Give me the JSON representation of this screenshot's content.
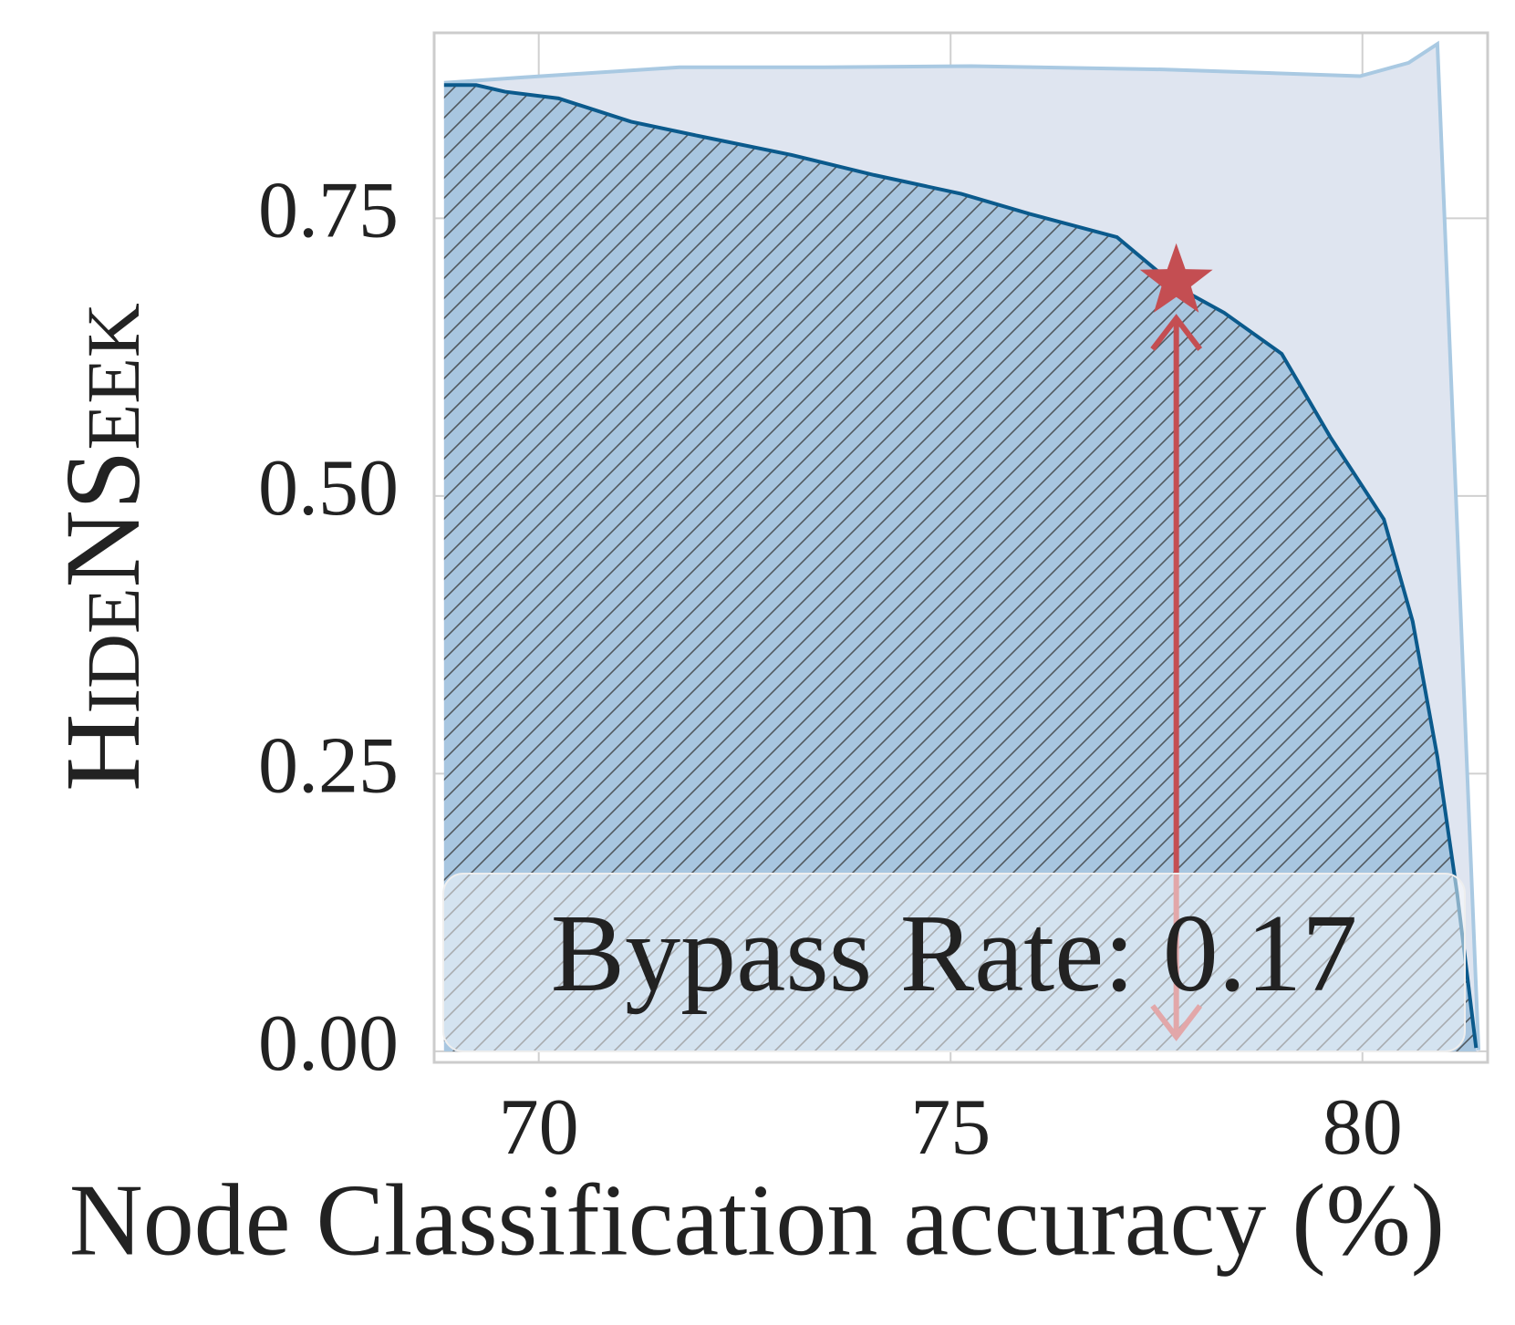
{
  "chart_data": {
    "type": "area",
    "xlabel": "Node Classification accuracy (%)",
    "ylabel": "HideNSeek",
    "xlim": [
      68.73,
      81.52
    ],
    "ylim": [
      -0.01,
      0.917
    ],
    "xticks": [
      70,
      75,
      80
    ],
    "yticks": [
      {
        "value": 0,
        "label": "0.00"
      },
      {
        "value": 0.25,
        "label": "0.25"
      },
      {
        "value": 0.5,
        "label": "0.50"
      },
      {
        "value": 0.75,
        "label": "0.75"
      }
    ],
    "grid": true,
    "series": [
      {
        "color": "#a9c9e2",
        "fill": "#dfe5f0",
        "x": [
          68.85,
          69.82,
          71.71,
          73.48,
          75.25,
          77.61,
          79.97,
          80.56,
          80.91,
          81.41
        ],
        "values": [
          0.872,
          0.877,
          0.886,
          0.886,
          0.887,
          0.884,
          0.878,
          0.89,
          0.907,
          0.001
        ]
      },
      {
        "color": "#0b5a8c",
        "fill": "#a8c6e0",
        "x": [
          68.85,
          69.24,
          69.59,
          70.24,
          71.12,
          71.95,
          73.07,
          74.07,
          75.13,
          75.96,
          77.02,
          77.73,
          78.32,
          79.02,
          79.61,
          80.26,
          80.61,
          80.91,
          81.15,
          81.38
        ],
        "values": [
          0.87,
          0.87,
          0.864,
          0.858,
          0.837,
          0.824,
          0.807,
          0.789,
          0.772,
          0.754,
          0.733,
          0.689,
          0.665,
          0.628,
          0.553,
          0.479,
          0.387,
          0.265,
          0.142,
          0.003
        ]
      }
    ],
    "marker": {
      "x": 77.74,
      "y": 0.693,
      "color": "#c44e52"
    },
    "arrow": {
      "x": 77.74,
      "y_from": 0.66,
      "y_to": 0.013,
      "color": "#c44e52"
    },
    "annotation": "Bypass Rate: 0.17"
  }
}
